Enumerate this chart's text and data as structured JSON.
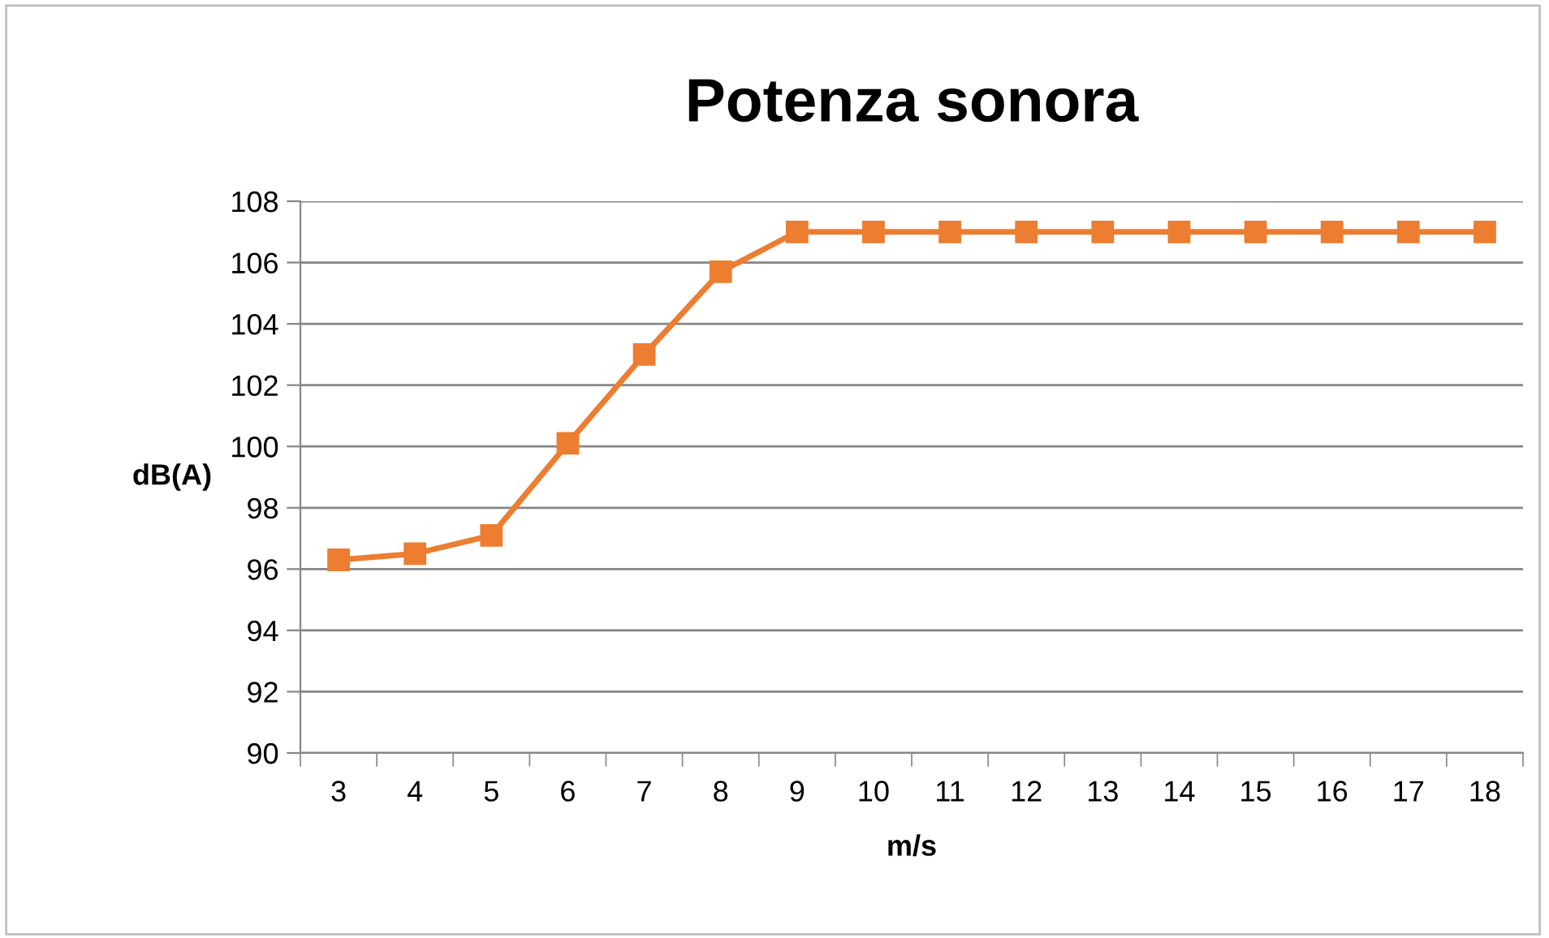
{
  "chart_data": {
    "type": "line",
    "title": "Potenza sonora",
    "xlabel": "m/s",
    "ylabel": "dB(A)",
    "categories": [
      "3",
      "4",
      "5",
      "6",
      "7",
      "8",
      "9",
      "10",
      "11",
      "12",
      "13",
      "14",
      "15",
      "16",
      "17",
      "18"
    ],
    "series": [
      {
        "color": "#ed7d31",
        "values": [
          96.3,
          96.5,
          97.1,
          100.1,
          103.0,
          105.7,
          107,
          107,
          107,
          107,
          107,
          107,
          107,
          107,
          107,
          107
        ]
      }
    ],
    "ylim": [
      90,
      108
    ],
    "yticks": [
      90,
      92,
      94,
      96,
      98,
      100,
      102,
      104,
      106,
      108
    ],
    "grid": "y",
    "marker": "square",
    "line_style": "solid"
  }
}
